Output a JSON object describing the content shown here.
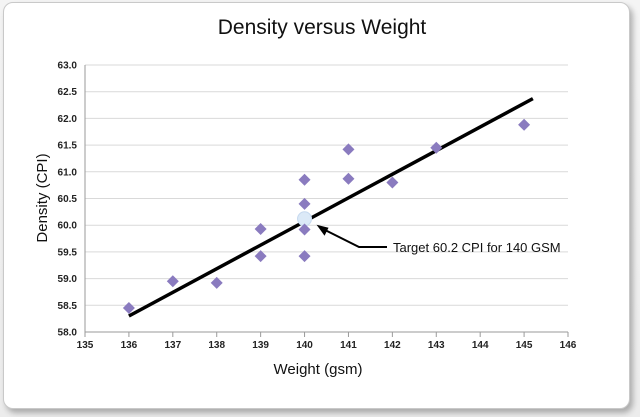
{
  "chart_data": {
    "type": "scatter",
    "title": "Density versus Weight",
    "xlabel": "Weight (gsm)",
    "ylabel": "Density (CPI)",
    "xlim": [
      135,
      146
    ],
    "ylim": [
      58.0,
      63.0
    ],
    "x_ticks": [
      "135",
      "136",
      "137",
      "138",
      "139",
      "140",
      "141",
      "142",
      "143",
      "144",
      "145",
      "146"
    ],
    "y_ticks": [
      "58.0",
      "58.5",
      "59.0",
      "59.5",
      "60.0",
      "60.5",
      "61.0",
      "61.5",
      "62.0",
      "62.5",
      "63.0"
    ],
    "grid": "horizontal",
    "series": [
      {
        "marker": "diamond",
        "color": "#8a7bbf",
        "points": [
          {
            "x": 136,
            "y": 58.45
          },
          {
            "x": 137,
            "y": 58.95
          },
          {
            "x": 138,
            "y": 58.92
          },
          {
            "x": 139,
            "y": 59.93
          },
          {
            "x": 139,
            "y": 59.42
          },
          {
            "x": 140,
            "y": 60.85
          },
          {
            "x": 140,
            "y": 60.4
          },
          {
            "x": 140,
            "y": 59.92
          },
          {
            "x": 140,
            "y": 59.42
          },
          {
            "x": 141,
            "y": 61.42
          },
          {
            "x": 141,
            "y": 60.87
          },
          {
            "x": 142,
            "y": 60.8
          },
          {
            "x": 143,
            "y": 61.45
          },
          {
            "x": 145,
            "y": 61.88
          }
        ]
      }
    ],
    "trendline": {
      "x": [
        136,
        145.2
      ],
      "y": [
        58.3,
        62.37
      ],
      "color": "#000000"
    },
    "highlight": {
      "x": 140.0,
      "y": 60.12,
      "color": "#dbe9f7"
    },
    "annotation": {
      "text": "Target 60.2 CPI for 140 GSM",
      "x": 140.0,
      "y": 60.12
    }
  }
}
